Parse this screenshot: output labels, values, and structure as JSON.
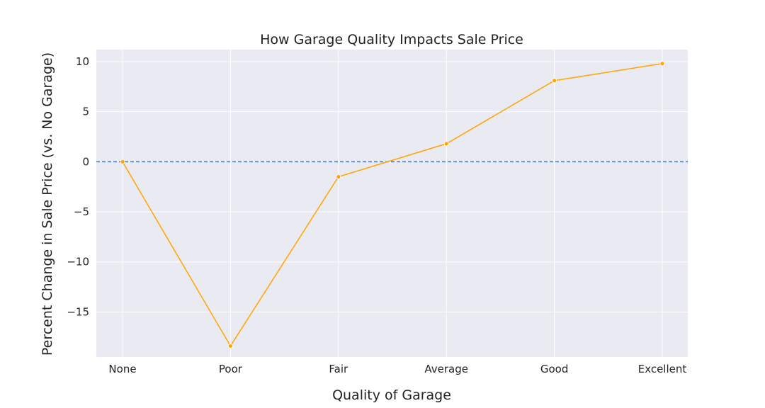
{
  "chart_data": {
    "type": "line",
    "title": "How Garage Quality Impacts Sale Price",
    "xlabel": "Quality of Garage",
    "ylabel": "Percent Change in Sale Price (vs. No Garage)",
    "categories": [
      "None",
      "Poor",
      "Fair",
      "Average",
      "Good",
      "Excellent"
    ],
    "series": [
      {
        "values": [
          0,
          -18.4,
          -1.5,
          1.8,
          8.1,
          9.8
        ],
        "color": "#ffa500"
      }
    ],
    "yticks": [
      10,
      5,
      0,
      -5,
      -10,
      -15
    ],
    "ytick_labels": [
      "10",
      "5",
      "0",
      "−5",
      "−10",
      "−15"
    ],
    "ylim": [
      -19.5,
      11.2
    ],
    "reference_line": {
      "y": 0,
      "style": "dashed",
      "color": "#4c72b0"
    },
    "grid": true,
    "background": "#eaeaf2",
    "grid_color": "#ffffff"
  }
}
